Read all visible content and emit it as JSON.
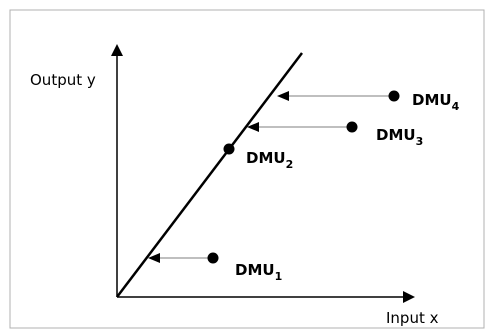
{
  "figure": {
    "y_axis_label": "Output y",
    "x_axis_label": "Input x",
    "dmus": [
      {
        "name": "DMU",
        "subscript": "1"
      },
      {
        "name": "DMU",
        "subscript": "2"
      },
      {
        "name": "DMU",
        "subscript": "3"
      },
      {
        "name": "DMU",
        "subscript": "4"
      }
    ],
    "colors": {
      "ink": "#000000",
      "arrow": "#7f7f7f",
      "frame": "#b0b0b0"
    }
  }
}
